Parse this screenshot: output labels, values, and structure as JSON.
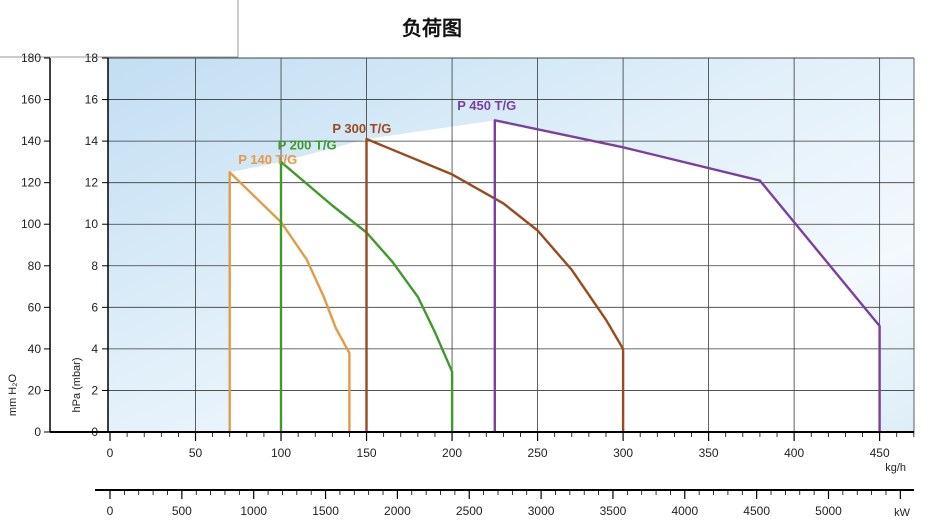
{
  "chart_data": {
    "type": "line",
    "title": "负荷图",
    "xlabel": "kg/h",
    "x2label": "kW",
    "ylabel_left": "mm H₂O",
    "ylabel_inner": "hPa (mbar)",
    "xlim": [
      0,
      470
    ],
    "ylim": [
      0,
      18
    ],
    "y_left_lim": [
      0,
      180
    ],
    "x2lim": [
      0,
      5600
    ],
    "x_ticks": [
      0,
      50,
      100,
      150,
      200,
      250,
      300,
      350,
      400,
      450
    ],
    "y_ticks": [
      0,
      2,
      4,
      6,
      8,
      10,
      12,
      14,
      16,
      18
    ],
    "y_left_ticks": [
      0,
      20,
      40,
      60,
      80,
      100,
      120,
      140,
      160,
      180
    ],
    "x2_ticks": [
      0,
      500,
      1000,
      1500,
      2000,
      2500,
      3000,
      3500,
      4000,
      4500,
      5000
    ],
    "grid": true,
    "series": [
      {
        "name": "P 140 T/G",
        "color": "#e59a45",
        "label_pos": [
          75,
          12.9
        ],
        "points": [
          [
            70,
            0
          ],
          [
            70,
            12.5
          ],
          [
            100,
            10.1
          ],
          [
            115,
            8.3
          ],
          [
            125,
            6.5
          ],
          [
            132,
            5
          ],
          [
            140,
            3.8
          ],
          [
            140,
            0
          ]
        ]
      },
      {
        "name": "P 200 T/G",
        "color": "#3e9a2c",
        "label_pos": [
          98,
          13.6
        ],
        "points": [
          [
            100,
            0
          ],
          [
            100,
            13
          ],
          [
            130,
            10.9
          ],
          [
            150,
            9.6
          ],
          [
            165,
            8.2
          ],
          [
            180,
            6.5
          ],
          [
            190,
            4.8
          ],
          [
            200,
            2.9
          ],
          [
            200,
            0
          ]
        ]
      },
      {
        "name": "P 300 T/G",
        "color": "#9a4a1e",
        "label_pos": [
          130,
          14.4
        ],
        "points": [
          [
            150,
            0
          ],
          [
            150,
            14.1
          ],
          [
            200,
            12.4
          ],
          [
            230,
            11
          ],
          [
            250,
            9.7
          ],
          [
            270,
            7.8
          ],
          [
            290,
            5.4
          ],
          [
            300,
            4
          ],
          [
            300,
            0
          ]
        ]
      },
      {
        "name": "P 450 T/G",
        "color": "#7b3fa0",
        "label_pos": [
          203,
          15.5
        ],
        "points": [
          [
            225,
            0
          ],
          [
            225,
            15
          ],
          [
            300,
            13.7
          ],
          [
            380,
            12.1
          ],
          [
            450,
            5.1
          ],
          [
            450,
            0
          ]
        ]
      }
    ]
  }
}
